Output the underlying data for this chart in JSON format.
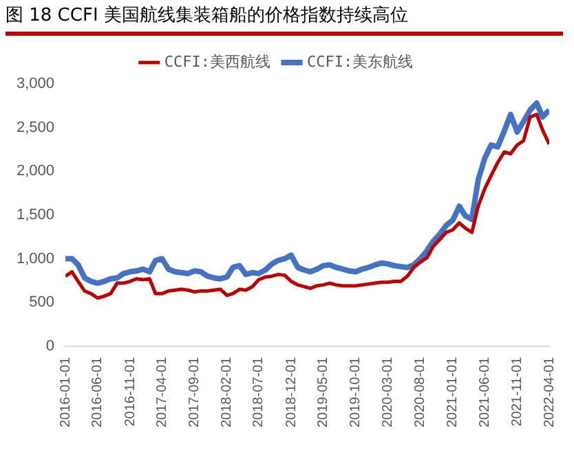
{
  "chart_data": {
    "type": "line",
    "title": "图 18 CCFI 美国航线集装箱船的价格指数持续高位",
    "x": [
      "2016-01",
      "2016-02",
      "2016-03",
      "2016-04",
      "2016-05",
      "2016-06",
      "2016-07",
      "2016-08",
      "2016-09",
      "2016-10",
      "2016-11",
      "2016-12",
      "2017-01",
      "2017-02",
      "2017-03",
      "2017-04",
      "2017-05",
      "2017-06",
      "2017-07",
      "2017-08",
      "2017-09",
      "2017-10",
      "2017-11",
      "2017-12",
      "2018-01",
      "2018-02",
      "2018-03",
      "2018-04",
      "2018-05",
      "2018-06",
      "2018-07",
      "2018-08",
      "2018-09",
      "2018-10",
      "2018-11",
      "2018-12",
      "2019-01",
      "2019-02",
      "2019-03",
      "2019-04",
      "2019-05",
      "2019-06",
      "2019-07",
      "2019-08",
      "2019-09",
      "2019-10",
      "2019-11",
      "2019-12",
      "2020-01",
      "2020-02",
      "2020-03",
      "2020-04",
      "2020-05",
      "2020-06",
      "2020-07",
      "2020-08",
      "2020-09",
      "2020-10",
      "2020-11",
      "2020-12",
      "2021-01",
      "2021-02",
      "2021-03",
      "2021-04",
      "2021-05",
      "2021-06",
      "2021-07",
      "2021-08",
      "2021-09",
      "2021-10",
      "2021-11",
      "2021-12",
      "2022-01",
      "2022-02",
      "2022-03",
      "2022-04"
    ],
    "series": [
      {
        "name": "CCFI:美西航线",
        "color": "#c00000",
        "values": [
          800,
          850,
          740,
          630,
          600,
          550,
          570,
          600,
          720,
          720,
          740,
          770,
          760,
          770,
          600,
          600,
          630,
          640,
          650,
          640,
          620,
          630,
          630,
          640,
          650,
          580,
          600,
          650,
          640,
          680,
          760,
          790,
          800,
          820,
          810,
          740,
          700,
          680,
          660,
          690,
          700,
          720,
          700,
          690,
          690,
          690,
          700,
          710,
          720,
          730,
          730,
          740,
          740,
          800,
          900,
          960,
          1010,
          1140,
          1220,
          1300,
          1330,
          1410,
          1350,
          1300,
          1600,
          1800,
          1950,
          2100,
          2220,
          2200,
          2300,
          2350,
          2620,
          2650,
          2470,
          2310
        ]
      },
      {
        "name": "CCFI:美东航线",
        "color": "#4472c4",
        "values": [
          1000,
          1000,
          930,
          780,
          740,
          720,
          740,
          770,
          780,
          830,
          850,
          860,
          880,
          850,
          980,
          1000,
          880,
          850,
          840,
          830,
          860,
          850,
          800,
          780,
          770,
          790,
          900,
          920,
          820,
          840,
          830,
          870,
          940,
          980,
          1000,
          1040,
          900,
          870,
          850,
          880,
          920,
          930,
          900,
          880,
          860,
          850,
          880,
          900,
          930,
          950,
          940,
          920,
          910,
          900,
          930,
          1000,
          1090,
          1200,
          1280,
          1380,
          1440,
          1600,
          1490,
          1450,
          1900,
          2150,
          2300,
          2280,
          2460,
          2650,
          2450,
          2570,
          2700,
          2780,
          2620,
          2700
        ]
      }
    ],
    "xlim": [
      "2016-01",
      "2022-04"
    ],
    "xticks": [
      "2016-01-01",
      "2016-06-01",
      "2016-11-01",
      "2017-04-01",
      "2017-09-01",
      "2018-02-01",
      "2018-07-01",
      "2018-12-01",
      "2019-05-01",
      "2019-10-01",
      "2020-03-01",
      "2020-08-01",
      "2021-01-01",
      "2021-06-01",
      "2021-11-01",
      "2022-04-01"
    ],
    "ylim": [
      0,
      3000
    ],
    "yticks": [
      0,
      500,
      {
        "value": 1000,
        "label": "1,000"
      },
      {
        "value": 1500,
        "label": "1,500"
      },
      {
        "value": 2000,
        "label": "2,000"
      },
      {
        "value": 2500,
        "label": "2,500"
      },
      {
        "value": 3000,
        "label": "3,000"
      }
    ],
    "grid": false,
    "legend": "top",
    "marker": "none",
    "line_style": "solid"
  }
}
